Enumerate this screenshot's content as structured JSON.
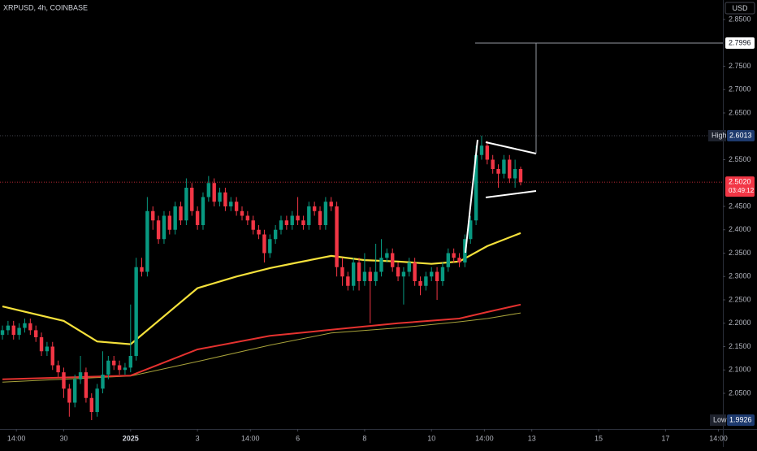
{
  "chart_data": {
    "type": "candlestick",
    "title": "XRPUSD, 4h, COINBASE",
    "currency": "USD",
    "up_color": "#089981",
    "down_color": "#f23645",
    "open": [
      2.175,
      2.185,
      2.195,
      2.175,
      2.19,
      2.2,
      2.185,
      2.17,
      2.14,
      2.15,
      2.11,
      2.095,
      2.06,
      2.03,
      2.08,
      2.095,
      2.04,
      2.01,
      2.06,
      2.09,
      2.12,
      2.11,
      2.1,
      2.105,
      2.13,
      2.32,
      2.31,
      2.44,
      2.42,
      2.38,
      2.43,
      2.4,
      2.45,
      2.42,
      2.49,
      2.44,
      2.41,
      2.47,
      2.5,
      2.46,
      2.48,
      2.45,
      2.46,
      2.44,
      2.43,
      2.42,
      2.4,
      2.39,
      2.35,
      2.38,
      2.4,
      2.42,
      2.41,
      2.43,
      2.42,
      2.41,
      2.45,
      2.44,
      2.41,
      2.46,
      2.45,
      2.32,
      2.3,
      2.28,
      2.33,
      2.29,
      2.31,
      2.29,
      2.31,
      2.34,
      2.35,
      2.32,
      2.3,
      2.31,
      2.33,
      2.29,
      2.28,
      2.3,
      2.31,
      2.29,
      2.32,
      2.35,
      2.34,
      2.33,
      2.38,
      2.42,
      2.56,
      2.58,
      2.55,
      2.53,
      2.52,
      2.55,
      2.51,
      2.53
    ],
    "high": [
      2.195,
      2.205,
      2.205,
      2.2,
      2.21,
      2.21,
      2.195,
      2.18,
      2.16,
      2.16,
      2.12,
      2.105,
      2.07,
      2.09,
      2.13,
      2.105,
      2.05,
      2.07,
      2.14,
      2.13,
      2.13,
      2.12,
      2.115,
      2.24,
      2.34,
      2.34,
      2.47,
      2.45,
      2.43,
      2.44,
      2.44,
      2.46,
      2.46,
      2.51,
      2.5,
      2.45,
      2.48,
      2.515,
      2.51,
      2.49,
      2.49,
      2.47,
      2.47,
      2.45,
      2.44,
      2.43,
      2.41,
      2.4,
      2.39,
      2.41,
      2.43,
      2.43,
      2.44,
      2.47,
      2.43,
      2.46,
      2.46,
      2.45,
      2.47,
      2.47,
      2.46,
      2.34,
      2.31,
      2.34,
      2.34,
      2.35,
      2.32,
      2.37,
      2.38,
      2.36,
      2.36,
      2.33,
      2.32,
      2.34,
      2.34,
      2.3,
      2.31,
      2.32,
      2.32,
      2.33,
      2.36,
      2.36,
      2.35,
      2.39,
      2.43,
      2.58,
      2.6013,
      2.59,
      2.56,
      2.54,
      2.56,
      2.56,
      2.55,
      2.535
    ],
    "low": [
      2.165,
      2.175,
      2.165,
      2.165,
      2.18,
      2.175,
      2.16,
      2.13,
      2.13,
      2.1,
      2.085,
      2.04,
      2.0,
      2.02,
      2.07,
      2.03,
      1.9926,
      2.0,
      2.05,
      2.08,
      2.1,
      2.09,
      2.09,
      2.095,
      2.12,
      2.3,
      2.3,
      2.4,
      2.37,
      2.37,
      2.39,
      2.39,
      2.41,
      2.41,
      2.43,
      2.4,
      2.4,
      2.46,
      2.45,
      2.45,
      2.44,
      2.44,
      2.43,
      2.42,
      2.41,
      2.39,
      2.38,
      2.33,
      2.34,
      2.37,
      2.39,
      2.4,
      2.4,
      2.41,
      2.4,
      2.4,
      2.43,
      2.4,
      2.4,
      2.44,
      2.3,
      2.28,
      2.27,
      2.27,
      2.27,
      2.28,
      2.2,
      2.28,
      2.3,
      2.33,
      2.31,
      2.29,
      2.24,
      2.3,
      2.28,
      2.26,
      2.27,
      2.29,
      2.25,
      2.28,
      2.31,
      2.33,
      2.32,
      2.32,
      2.37,
      2.41,
      2.55,
      2.54,
      2.52,
      2.49,
      2.51,
      2.5,
      2.49,
      2.495
    ],
    "close": [
      2.185,
      2.195,
      2.175,
      2.19,
      2.2,
      2.185,
      2.17,
      2.14,
      2.15,
      2.11,
      2.095,
      2.06,
      2.03,
      2.08,
      2.095,
      2.04,
      2.01,
      2.06,
      2.09,
      2.12,
      2.11,
      2.1,
      2.105,
      2.13,
      2.32,
      2.31,
      2.44,
      2.42,
      2.38,
      2.43,
      2.4,
      2.45,
      2.42,
      2.49,
      2.44,
      2.41,
      2.47,
      2.5,
      2.46,
      2.48,
      2.45,
      2.46,
      2.44,
      2.43,
      2.42,
      2.4,
      2.39,
      2.35,
      2.38,
      2.4,
      2.42,
      2.41,
      2.43,
      2.42,
      2.41,
      2.45,
      2.44,
      2.41,
      2.46,
      2.45,
      2.32,
      2.3,
      2.28,
      2.33,
      2.29,
      2.31,
      2.29,
      2.31,
      2.34,
      2.35,
      2.32,
      2.3,
      2.31,
      2.33,
      2.29,
      2.28,
      2.3,
      2.31,
      2.29,
      2.32,
      2.35,
      2.34,
      2.33,
      2.38,
      2.42,
      2.56,
      2.58,
      2.55,
      2.53,
      2.52,
      2.55,
      2.51,
      2.53,
      2.502
    ],
    "moving_averages": [
      {
        "color": "#f5e13b",
        "width": 2.2,
        "x": [
          0,
          11,
          17,
          23,
          35,
          42,
          48,
          53,
          59,
          65,
          71,
          77,
          82,
          87,
          93
        ],
        "values": [
          2.236,
          2.205,
          2.161,
          2.155,
          2.275,
          2.3,
          2.318,
          2.33,
          2.344,
          2.335,
          2.332,
          2.327,
          2.332,
          2.365,
          2.393
        ]
      },
      {
        "color": "#e5322f",
        "width": 2,
        "x": [
          0,
          23,
          35,
          48,
          59,
          71,
          82,
          87,
          93
        ],
        "values": [
          2.08,
          2.088,
          2.144,
          2.173,
          2.186,
          2.2,
          2.21,
          2.224,
          2.24
        ]
      },
      {
        "color": "#a8a23a",
        "width": 1,
        "x": [
          0,
          23,
          35,
          48,
          59,
          71,
          82,
          87,
          93
        ],
        "values": [
          2.074,
          2.087,
          2.118,
          2.153,
          2.179,
          2.19,
          2.203,
          2.21,
          2.222
        ]
      }
    ],
    "ylim": [
      1.9735,
      2.8917
    ],
    "xlim": [
      -0.44,
      129.3
    ],
    "yticks": [
      {
        "value": 2.85,
        "label": "2.8500"
      },
      {
        "value": 2.75,
        "label": "2.7500"
      },
      {
        "value": 2.7,
        "label": "2.7000"
      },
      {
        "value": 2.65,
        "label": "2.6500"
      },
      {
        "value": 2.55,
        "label": "2.5500"
      },
      {
        "value": 2.45,
        "label": "2.4500"
      },
      {
        "value": 2.4,
        "label": "2.4000"
      },
      {
        "value": 2.35,
        "label": "2.3500"
      },
      {
        "value": 2.3,
        "label": "2.3000"
      },
      {
        "value": 2.25,
        "label": "2.2500"
      },
      {
        "value": 2.2,
        "label": "2.2000"
      },
      {
        "value": 2.15,
        "label": "2.1500"
      },
      {
        "value": 2.1,
        "label": "2.1000"
      },
      {
        "value": 2.05,
        "label": "2.0500"
      }
    ],
    "xticks": [
      {
        "value": 2.5,
        "label": "14:00"
      },
      {
        "value": 11,
        "label": "30"
      },
      {
        "value": 23,
        "label": "2025"
      },
      {
        "value": 35,
        "label": "3"
      },
      {
        "value": 44.5,
        "label": "14:00"
      },
      {
        "value": 53,
        "label": "6"
      },
      {
        "value": 65,
        "label": "8"
      },
      {
        "value": 77,
        "label": "10"
      },
      {
        "value": 86.5,
        "label": "14:00"
      },
      {
        "value": 95,
        "label": "13"
      },
      {
        "value": 107,
        "label": "15"
      },
      {
        "value": 119,
        "label": "17"
      },
      {
        "value": 128.5,
        "label": "14:00"
      }
    ],
    "target": 2.7996,
    "high_tag": {
      "text": "High",
      "value": 2.6013
    },
    "low_tag": {
      "text": "Low",
      "value": 1.9926
    },
    "last_tag": {
      "value": 2.502,
      "label": "2.5020",
      "countdown": "03:49:12"
    }
  }
}
